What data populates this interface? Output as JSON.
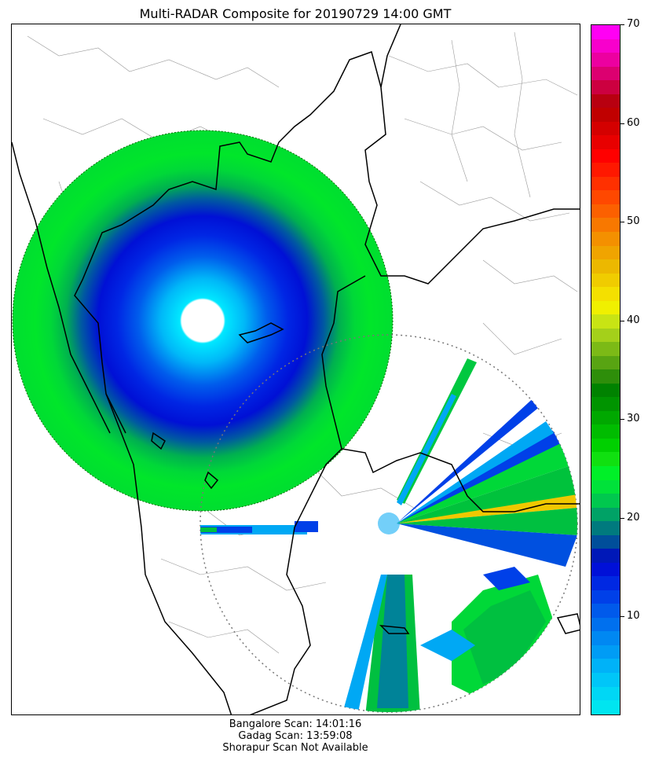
{
  "title": "Multi-RADAR Composite for 20190729 14:00 GMT",
  "colorbar": {
    "min": 0,
    "max": 70,
    "ticks": [
      {
        "value": 10,
        "label": "10"
      },
      {
        "value": 20,
        "label": "20"
      },
      {
        "value": 30,
        "label": "30"
      },
      {
        "value": 40,
        "label": "40"
      },
      {
        "value": 50,
        "label": "50"
      },
      {
        "value": 60,
        "label": "60"
      },
      {
        "value": 70,
        "label": "70"
      }
    ],
    "colors": [
      "#00e5f0",
      "#00d7f5",
      "#00c6f8",
      "#00b2f8",
      "#009cf5",
      "#0088f2",
      "#0070ee",
      "#005aeb",
      "#0040e8",
      "#0028e2",
      "#0010d8",
      "#0018b8",
      "#004e9a",
      "#007a7e",
      "#00a266",
      "#00c84e",
      "#00e23a",
      "#00f028",
      "#10e010",
      "#00d000",
      "#00bc00",
      "#00a800",
      "#009400",
      "#008200",
      "#2e8e0a",
      "#58a412",
      "#7cba16",
      "#a4d01a",
      "#c8e414",
      "#f0f000",
      "#f4e000",
      "#f0cc00",
      "#ecb800",
      "#f0a400",
      "#f49000",
      "#f87800",
      "#fc6000",
      "#ff4800",
      "#ff3000",
      "#ff1800",
      "#ff0000",
      "#e80000",
      "#d40000",
      "#c00000",
      "#b80010",
      "#cc0040",
      "#dc0070",
      "#ec00a0",
      "#f800cc",
      "#ff00f4"
    ]
  },
  "footer": {
    "line1": "Bangalore Scan: 14:01:16",
    "line2": "Gadag Scan: 13:59:08",
    "line3": "Shorapur Scan Not Available"
  }
}
